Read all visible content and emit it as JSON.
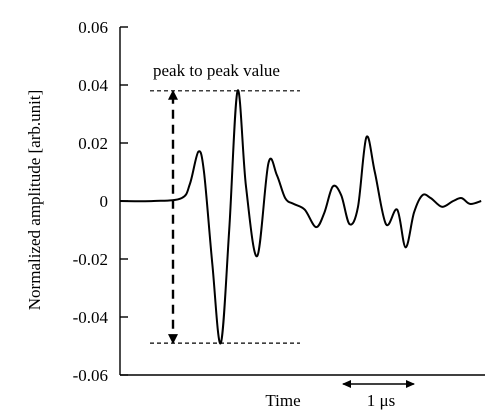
{
  "chart_data": {
    "type": "line",
    "ylabel": "Normalized amplitude [arb.unit]",
    "xlabel": "Time",
    "ylim": [
      -0.06,
      0.06
    ],
    "y_ticks": [
      "0.06",
      "0.04",
      "0.02",
      "0",
      "-0.02",
      "-0.04",
      "-0.06"
    ],
    "x_unit_scale": {
      "label": "1 μs",
      "span_us": 1
    },
    "grid": false,
    "annotations": [
      {
        "text": "peak to peak value",
        "from": -0.049,
        "to": 0.038
      }
    ],
    "series": [
      {
        "x_us": [
          0,
          0.6,
          1.1,
          1.25,
          1.4,
          1.5,
          1.65,
          1.8,
          1.95,
          2.1,
          2.25,
          2.45,
          2.65,
          2.8,
          2.95,
          3.1,
          3.3,
          3.5,
          3.65,
          3.8,
          3.95,
          4.1,
          4.25,
          4.4,
          4.55,
          4.75,
          4.95,
          5.1,
          5.25,
          5.4,
          5.55,
          5.75,
          5.95,
          6.1,
          6.25,
          6.45
        ],
        "y": [
          0,
          0,
          0.001,
          0.006,
          0.017,
          0.01,
          -0.022,
          -0.049,
          -0.01,
          0.038,
          0.005,
          -0.019,
          0.013,
          0.009,
          0.001,
          -0.001,
          -0.003,
          -0.009,
          -0.004,
          0.005,
          0.002,
          -0.008,
          -0.002,
          0.022,
          0.01,
          -0.008,
          -0.003,
          -0.016,
          -0.004,
          0.002,
          0.001,
          -0.002,
          0.0,
          0.001,
          -0.001,
          0.0
        ]
      }
    ]
  }
}
